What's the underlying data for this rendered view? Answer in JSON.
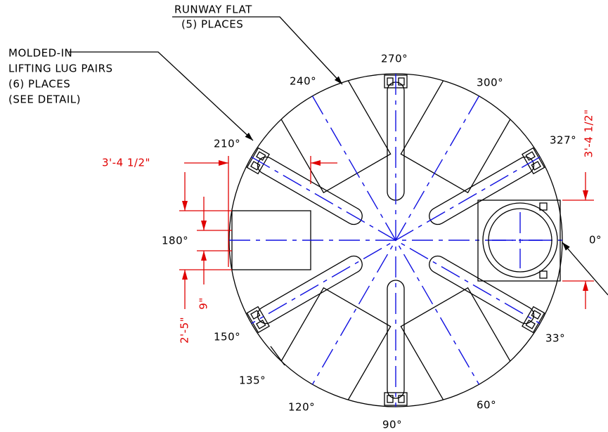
{
  "leaders": {
    "runway_flat": [
      "RUNWAY FLAT",
      "(5) PLACES"
    ],
    "lifting_lugs": [
      "MOLDED-IN",
      "LIFTING LUG PAIRS",
      "(6) PLACES",
      "(SEE DETAIL)"
    ]
  },
  "angle_labels": [
    "270°",
    "240°",
    "300°",
    "210°",
    "327°",
    "180°",
    "0°",
    "150°",
    "33°",
    "135°",
    "120°",
    "60°",
    "90°"
  ],
  "dimensions": {
    "flat_offset": "3'-4 1/2\"",
    "manway_offset": "3'-4 1/2\"",
    "lug_gap": "9\"",
    "flat_width": "2'-5\""
  }
}
